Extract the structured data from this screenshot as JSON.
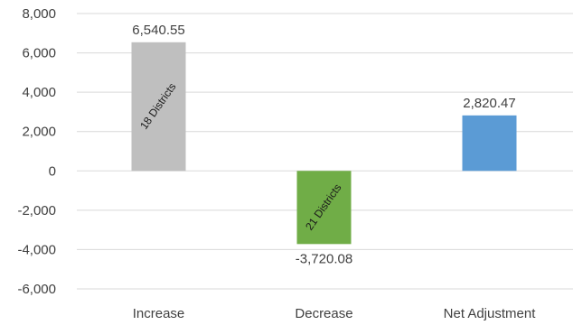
{
  "chart_data": {
    "type": "bar",
    "title": "",
    "xlabel": "",
    "ylabel": "",
    "categories": [
      "Increase",
      "Decrease",
      "Net Adjustment"
    ],
    "values": [
      6540.55,
      -3720.08,
      2820.47
    ],
    "value_labels": [
      "6,540.55",
      "-3,720.08",
      "2,820.47"
    ],
    "inner_labels": [
      "18 Districts",
      "21 Districts",
      ""
    ],
    "colors": [
      "#bfbfbf",
      "#70ad47",
      "#5b9bd5"
    ],
    "ylim": [
      -6000,
      8000
    ],
    "yticks": [
      8000,
      6000,
      4000,
      2000,
      0,
      -2000,
      -4000,
      -6000
    ],
    "ytick_labels": [
      "8,000",
      "6,000",
      "4,000",
      "2,000",
      "0",
      "-2,000",
      "-4,000",
      "-6,000"
    ],
    "grid": true,
    "legend": "none"
  }
}
